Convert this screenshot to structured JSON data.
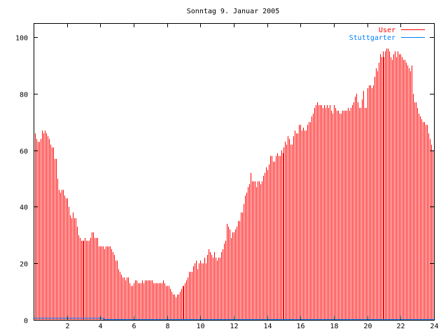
{
  "chart_data": {
    "type": "bar",
    "style": "impulses",
    "title": "Sonntag 9. Januar 2005",
    "xlabel": "",
    "ylabel": "",
    "xlim": [
      0,
      24
    ],
    "ylim": [
      0,
      105
    ],
    "xticks": [
      2,
      4,
      6,
      8,
      10,
      12,
      14,
      16,
      18,
      20,
      22,
      24
    ],
    "yticks": [
      0,
      20,
      40,
      60,
      80,
      100
    ],
    "x_step_hours": 0.0833333,
    "legend_position": "top-right",
    "colors": {
      "User": "#ff0000",
      "Stuttgarter": "#0080ff",
      "axis": "#000000"
    },
    "series": [
      {
        "name": "User",
        "color": "#ff0000",
        "values": [
          66,
          66,
          64,
          63,
          63,
          64,
          67,
          66,
          67,
          66,
          65,
          64,
          62,
          61,
          61,
          57,
          57,
          50,
          46,
          45,
          46,
          46,
          44,
          43,
          43,
          40,
          37,
          36,
          38,
          36,
          36,
          33,
          30,
          29,
          28,
          28,
          28,
          29,
          28,
          28,
          28,
          29,
          31,
          31,
          29,
          29,
          29,
          26,
          26,
          26,
          26,
          25,
          26,
          26,
          26,
          26,
          25,
          24,
          23,
          21,
          21,
          18,
          17,
          16,
          15,
          15,
          14,
          15,
          15,
          13,
          12,
          12,
          13,
          14,
          14,
          13,
          13,
          13,
          14,
          13,
          14,
          14,
          14,
          14,
          14,
          14,
          13,
          13,
          13,
          13,
          13,
          13,
          13,
          14,
          13,
          12,
          12,
          12,
          11,
          10,
          9,
          9,
          8,
          9,
          9,
          10,
          11,
          12,
          12,
          13,
          14,
          15,
          17,
          17,
          17,
          19,
          20,
          21,
          18,
          20,
          21,
          20,
          20,
          22,
          20,
          23,
          25,
          24,
          23,
          22,
          24,
          22,
          21,
          22,
          22,
          24,
          25,
          27,
          28,
          34,
          33,
          32,
          29,
          31,
          31,
          32,
          33,
          35,
          35,
          38,
          38,
          41,
          44,
          45,
          47,
          48,
          52,
          49,
          49,
          49,
          47,
          49,
          49,
          48,
          49,
          51,
          52,
          54,
          53,
          55,
          58,
          58,
          56,
          56,
          58,
          59,
          58,
          58,
          60,
          59,
          61,
          63,
          62,
          65,
          64,
          62,
          62,
          65,
          67,
          66,
          66,
          69,
          69,
          67,
          68,
          67,
          67,
          69,
          70,
          70,
          72,
          73,
          75,
          76,
          77,
          76,
          76,
          76,
          75,
          76,
          75,
          76,
          75,
          76,
          74,
          73,
          76,
          75,
          74,
          74,
          73,
          73,
          74,
          74,
          74,
          74,
          75,
          74,
          75,
          76,
          77,
          79,
          80,
          77,
          75,
          75,
          78,
          81,
          75,
          75,
          82,
          83,
          83,
          82,
          83,
          86,
          89,
          88,
          91,
          94,
          93,
          95,
          93,
          95,
          96,
          96,
          95,
          93,
          92,
          94,
          95,
          93,
          95,
          94,
          94,
          93,
          92,
          92,
          91,
          90,
          89,
          88,
          90,
          80,
          77,
          77,
          75,
          73,
          72,
          71,
          70,
          70,
          69,
          69,
          66,
          64,
          62,
          60
        ]
      },
      {
        "name": "Stuttgarter",
        "color": "#0080ff",
        "x": [
          0,
          4.2,
          4.2,
          24
        ],
        "y": [
          0.5,
          0.5,
          0,
          0
        ]
      }
    ]
  }
}
